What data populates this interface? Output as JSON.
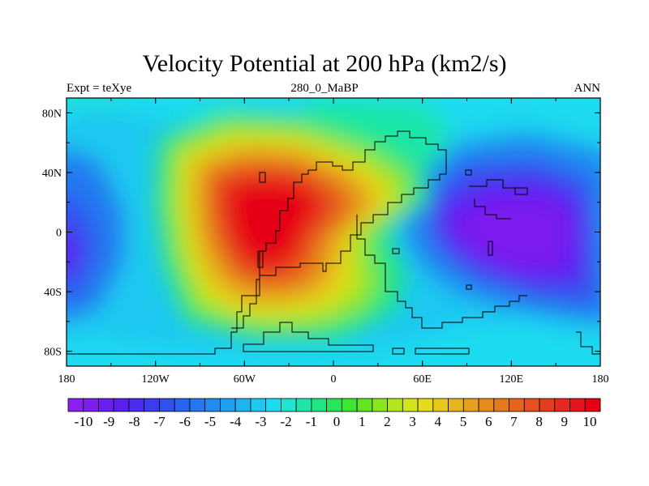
{
  "title": "Velocity Potential at 200 hPa (km2/s)",
  "subtitle_left": "Expt = teXye",
  "subtitle_center": "280_0_MaBP",
  "subtitle_right": "ANN",
  "x_ticks": [
    "180",
    "120W",
    "60W",
    "0",
    "60E",
    "120E",
    "180"
  ],
  "y_ticks": [
    "80N",
    "40N",
    "0",
    "40S",
    "80S"
  ],
  "colorbar": {
    "labels": [
      "-10",
      "-9",
      "-8",
      "-7",
      "-6",
      "-5",
      "-4",
      "-3",
      "-2",
      "-1",
      "0",
      "1",
      "2",
      "3",
      "4",
      "5",
      "6",
      "7",
      "8",
      "9",
      "10"
    ],
    "colors": [
      "#8b1ef0",
      "#7d1ef0",
      "#6a1ef0",
      "#5a1ff0",
      "#4a2bf0",
      "#3c3cf0",
      "#3050f0",
      "#2864f0",
      "#2278f0",
      "#1e8cf0",
      "#1ea0f0",
      "#1eb4f0",
      "#1ec8f0",
      "#1edcf0",
      "#1ee6d2",
      "#1ee6aa",
      "#1ee682",
      "#28e65a",
      "#3ce632",
      "#64e61e",
      "#8ce61e",
      "#b4e61e",
      "#d2e61e",
      "#e6dc1e",
      "#e6c81e",
      "#e6b41e",
      "#e6a01e",
      "#e68c1e",
      "#e6781e",
      "#e6641e",
      "#e6501e",
      "#e63c1e",
      "#e6281e",
      "#e6141e",
      "#e60014"
    ]
  }
}
